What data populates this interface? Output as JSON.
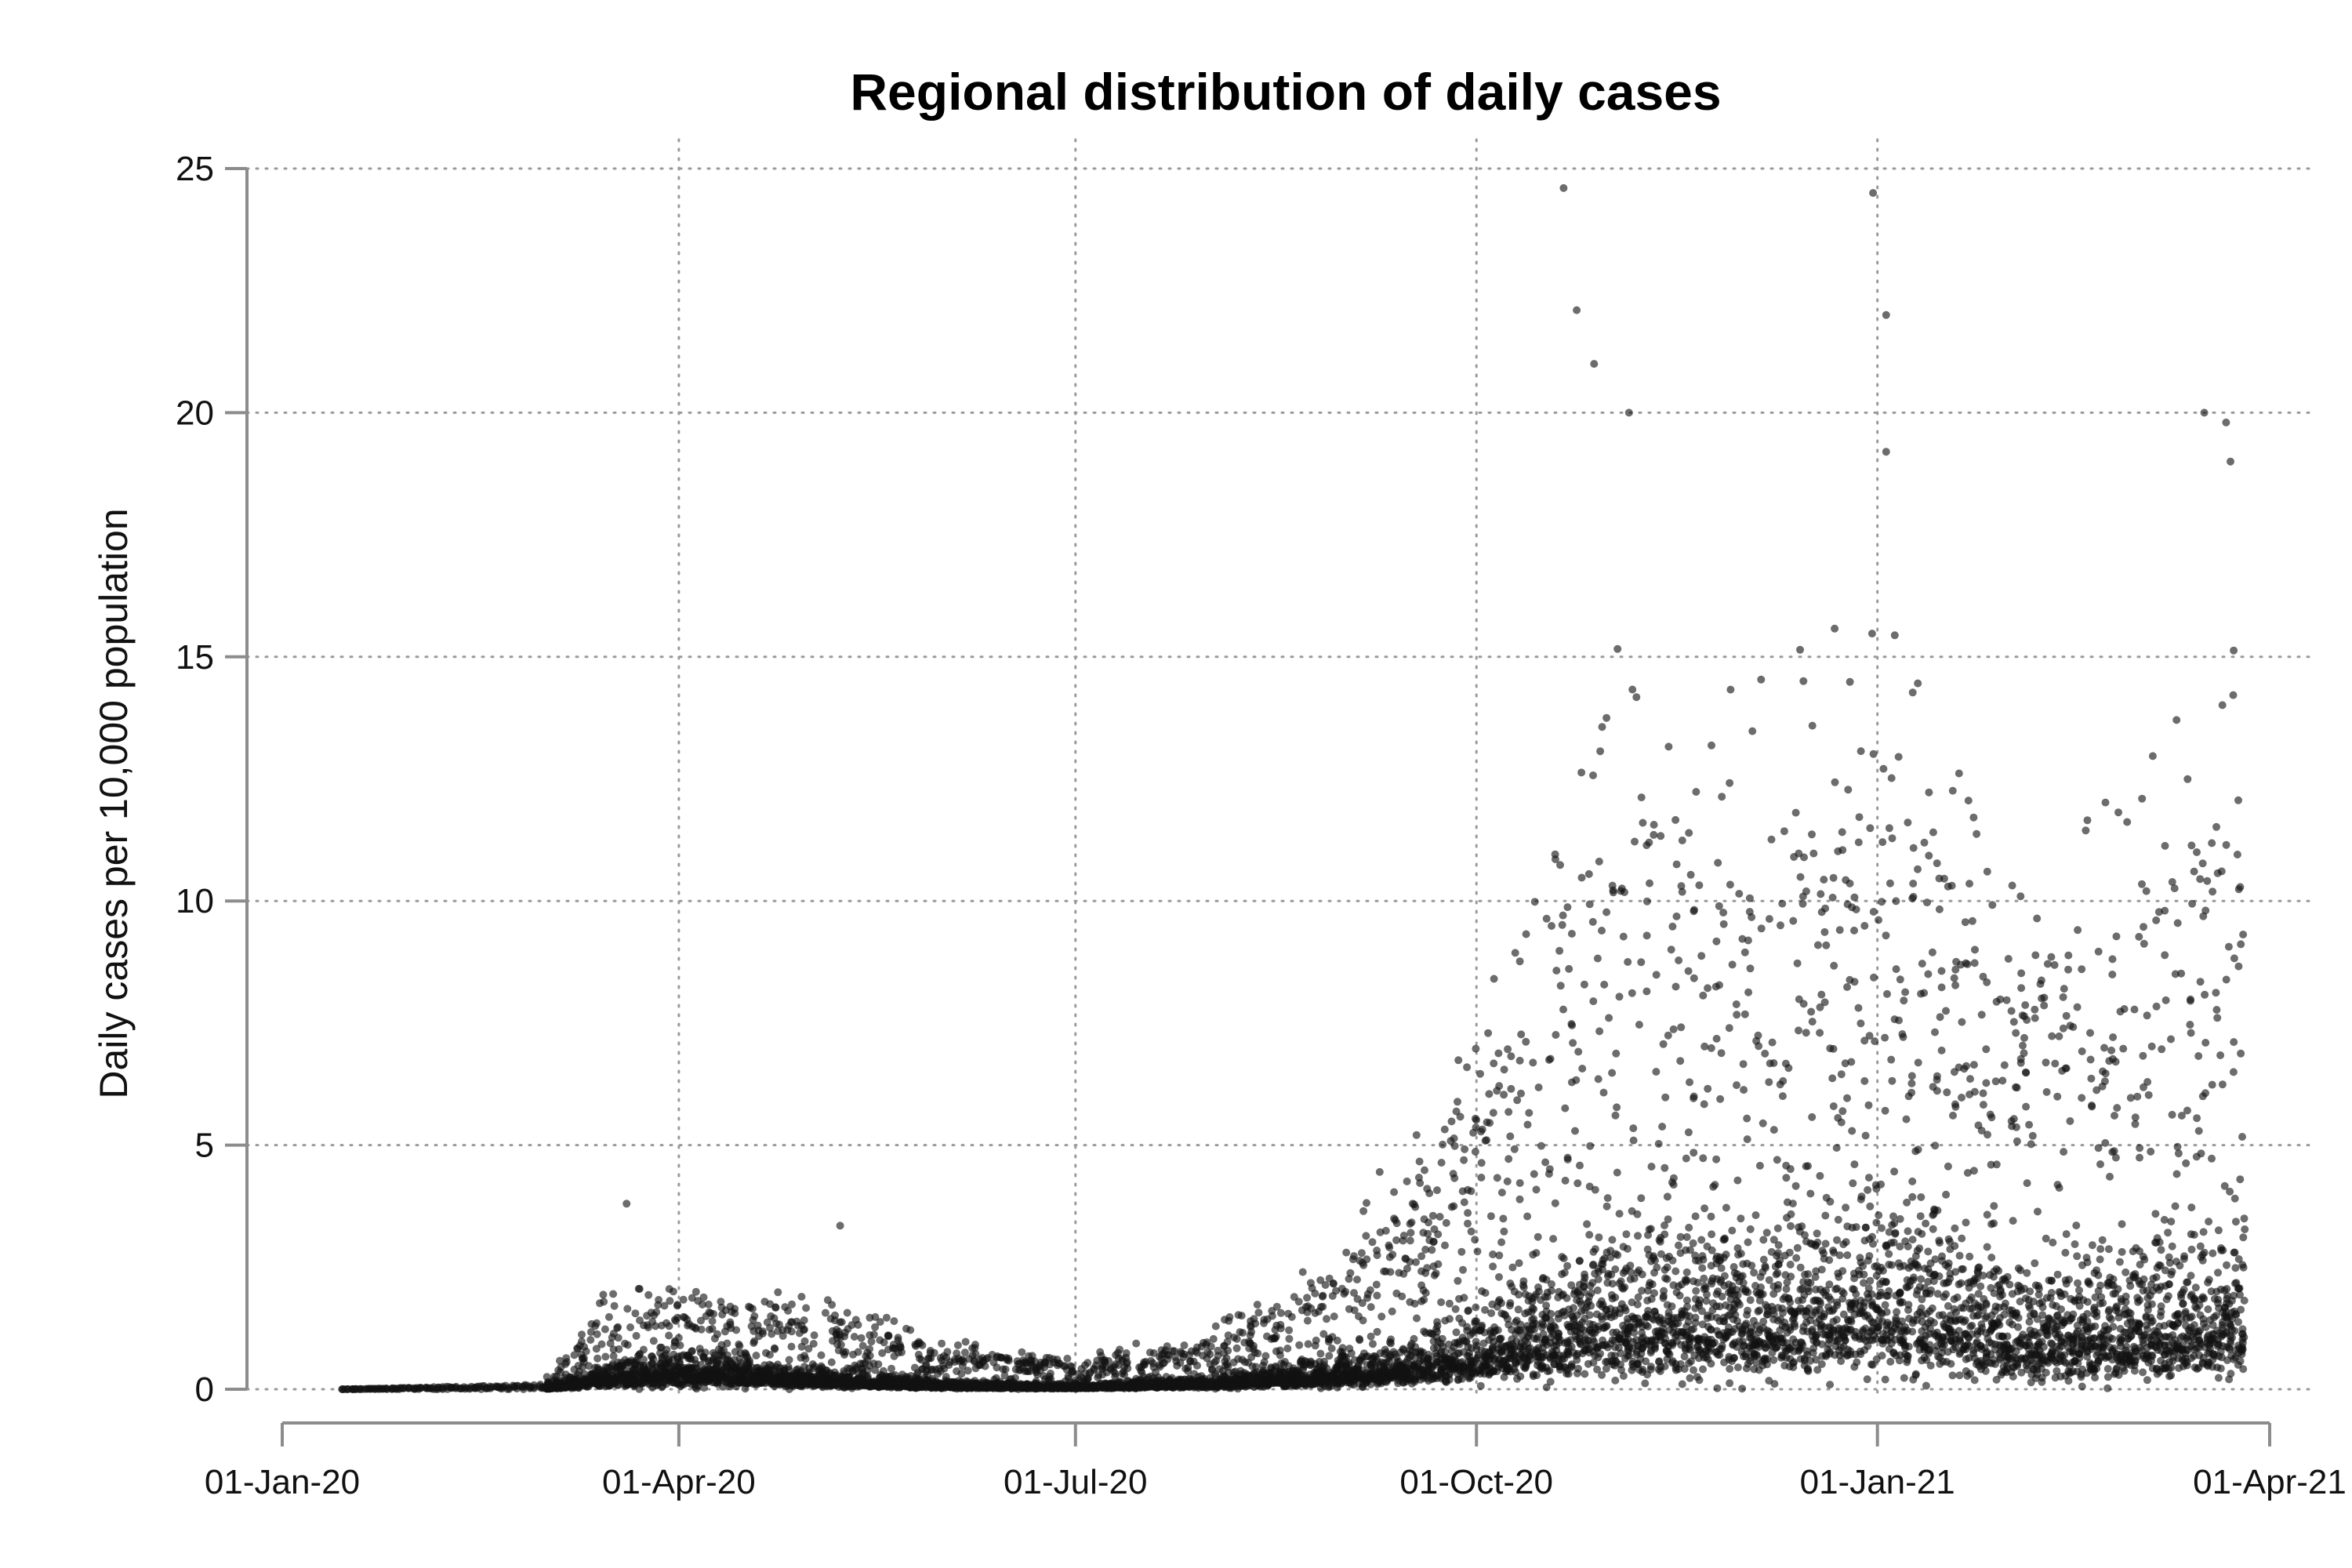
{
  "chart_data": {
    "type": "scatter",
    "title": "Regional distribution of daily cases",
    "xlabel": "",
    "ylabel": "Daily cases per 10,000 population",
    "xlim": [
      "2020-01-01",
      "2021-04-01"
    ],
    "ylim": [
      0,
      25
    ],
    "y_ticks": [
      0,
      5,
      10,
      15,
      20,
      25
    ],
    "y_tick_labels": [
      "0",
      "5",
      "10",
      "15",
      "20",
      "25"
    ],
    "x_ticks": [
      "2020-01-01",
      "2020-04-01",
      "2020-07-01",
      "2020-10-01",
      "2021-01-01",
      "2021-04-01"
    ],
    "x_tick_labels": [
      "01-Jan-20",
      "01-Apr-20",
      "01-Jul-20",
      "01-Oct-20",
      "01-Jan-21",
      "01-Apr-21"
    ],
    "grid": true,
    "marker_color": "#111111",
    "series_description": "Daily case rates for each region; points approximate the depicted distribution",
    "data_range": {
      "start": "2020-01-15",
      "end": "2021-03-26"
    },
    "notable_points": [
      {
        "date": "2020-03-20",
        "value": 3.8
      },
      {
        "date": "2020-05-08",
        "value": 3.35
      },
      {
        "date": "2020-10-21",
        "value": 24.6
      },
      {
        "date": "2020-10-24",
        "value": 22.1
      },
      {
        "date": "2020-10-28",
        "value": 21.0
      },
      {
        "date": "2020-11-05",
        "value": 20.0
      },
      {
        "date": "2020-12-31",
        "value": 24.5
      },
      {
        "date": "2021-01-03",
        "value": 22.0
      },
      {
        "date": "2021-01-03",
        "value": 19.2
      },
      {
        "date": "2021-03-17",
        "value": 20.0
      },
      {
        "date": "2021-03-22",
        "value": 19.8
      },
      {
        "date": "2021-03-23",
        "value": 19.0
      }
    ],
    "distribution_profile": [
      {
        "date": "2020-01-15",
        "median": 0.0,
        "upper": 0.0
      },
      {
        "date": "2020-03-01",
        "median": 0.0,
        "upper": 0.1
      },
      {
        "date": "2020-03-15",
        "median": 0.3,
        "upper": 1.5
      },
      {
        "date": "2020-04-01",
        "median": 0.5,
        "upper": 2.0
      },
      {
        "date": "2020-05-01",
        "median": 0.25,
        "upper": 1.6
      },
      {
        "date": "2020-06-01",
        "median": 0.1,
        "upper": 0.8
      },
      {
        "date": "2020-07-01",
        "median": 0.05,
        "upper": 0.5
      },
      {
        "date": "2020-08-01",
        "median": 0.15,
        "upper": 1.0
      },
      {
        "date": "2020-09-01",
        "median": 0.4,
        "upper": 2.5
      },
      {
        "date": "2020-10-01",
        "median": 0.9,
        "upper": 6.0
      },
      {
        "date": "2020-11-01",
        "median": 1.8,
        "upper": 12.0
      },
      {
        "date": "2020-12-01",
        "median": 1.9,
        "upper": 11.0
      },
      {
        "date": "2021-01-01",
        "median": 2.3,
        "upper": 13.0
      },
      {
        "date": "2021-02-01",
        "median": 1.4,
        "upper": 8.0
      },
      {
        "date": "2021-03-01",
        "median": 1.6,
        "upper": 10.0
      },
      {
        "date": "2021-03-26",
        "median": 1.8,
        "upper": 12.0
      }
    ]
  }
}
